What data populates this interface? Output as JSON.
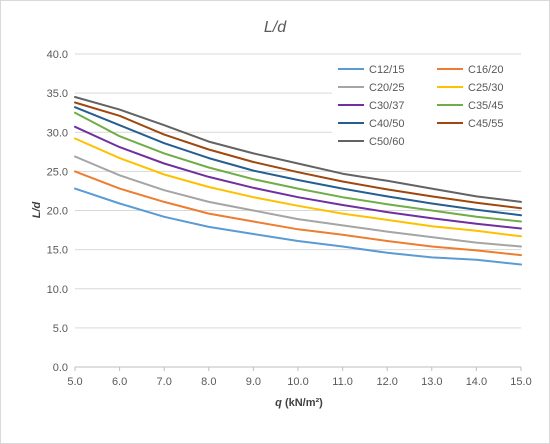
{
  "chart_data": {
    "type": "line",
    "title": "L/d",
    "xlabel": "q (kN/m²)",
    "xlabel_parts": {
      "var": "q",
      "unit": "(kN/m²)"
    },
    "ylabel": "L/d",
    "ylabel_parts": {
      "var": "L/d"
    },
    "xlim": [
      5.0,
      15.0
    ],
    "ylim": [
      0.0,
      40.0
    ],
    "x_ticks": [
      "5.0",
      "6.0",
      "7.0",
      "8.0",
      "9.0",
      "10.0",
      "11.0",
      "12.0",
      "13.0",
      "14.0",
      "15.0"
    ],
    "y_ticks": [
      "0.0",
      "5.0",
      "10.0",
      "15.0",
      "20.0",
      "25.0",
      "30.0",
      "35.0",
      "40.0"
    ],
    "grid": "horizontal",
    "legend_position": "top-right",
    "x": [
      5,
      6,
      7,
      8,
      9,
      10,
      11,
      12,
      13,
      14,
      15
    ],
    "series": [
      {
        "name": "C12/15",
        "color": "#5b9bd5",
        "values": [
          22.8,
          20.9,
          19.2,
          17.9,
          17.0,
          16.1,
          15.4,
          14.6,
          14.0,
          13.7,
          13.1
        ]
      },
      {
        "name": "C16/20",
        "color": "#ed7d31",
        "values": [
          25.0,
          22.8,
          21.1,
          19.6,
          18.6,
          17.6,
          16.9,
          16.1,
          15.4,
          14.9,
          14.3
        ]
      },
      {
        "name": "C20/25",
        "color": "#a5a5a5",
        "values": [
          26.9,
          24.5,
          22.6,
          21.1,
          20.0,
          18.9,
          18.1,
          17.3,
          16.6,
          15.9,
          15.4
        ]
      },
      {
        "name": "C25/30",
        "color": "#ffc000",
        "values": [
          29.2,
          26.7,
          24.6,
          23.0,
          21.7,
          20.6,
          19.6,
          18.8,
          18.0,
          17.4,
          16.7
        ]
      },
      {
        "name": "C30/37",
        "color": "#7030a0",
        "values": [
          30.7,
          28.1,
          26.0,
          24.3,
          22.9,
          21.7,
          20.7,
          19.8,
          19.0,
          18.3,
          17.7
        ]
      },
      {
        "name": "C35/45",
        "color": "#70ad47",
        "values": [
          32.5,
          29.5,
          27.3,
          25.5,
          24.0,
          22.8,
          21.7,
          20.8,
          20.0,
          19.2,
          18.6
        ]
      },
      {
        "name": "C40/50",
        "color": "#255e91",
        "values": [
          33.2,
          30.9,
          28.6,
          26.7,
          25.1,
          23.9,
          22.8,
          21.8,
          20.9,
          20.1,
          19.4
        ]
      },
      {
        "name": "C45/55",
        "color": "#9e480e",
        "values": [
          33.8,
          32.1,
          29.7,
          27.8,
          26.2,
          24.9,
          23.7,
          22.7,
          21.8,
          21.0,
          20.3
        ]
      },
      {
        "name": "C50/60",
        "color": "#636363",
        "values": [
          34.5,
          32.9,
          30.9,
          28.8,
          27.3,
          26.0,
          24.7,
          23.8,
          22.8,
          21.8,
          21.1
        ]
      }
    ],
    "colors": {
      "gridline": "#d9d9d9",
      "axis_line": "#bfbfbf",
      "text": "#595959"
    }
  }
}
